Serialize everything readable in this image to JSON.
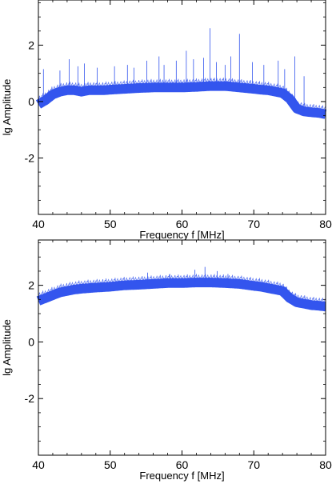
{
  "chart_data": [
    {
      "type": "line",
      "xlabel": "Frequency f [MHz]",
      "ylabel": "lg Amplitude",
      "xlim": [
        40,
        80
      ],
      "ylim": [
        -4,
        3.6
      ],
      "xticks": [
        40,
        50,
        60,
        70,
        80
      ],
      "yticks": [
        -2,
        0,
        2
      ],
      "color": "#3355ee",
      "grid": false,
      "series": [
        {
          "x": [
            40,
            41,
            42,
            43,
            44,
            45,
            46,
            47,
            48,
            49,
            50,
            52,
            54,
            56,
            58,
            60,
            62,
            64,
            66,
            68,
            70,
            71,
            72,
            73,
            74,
            75,
            76,
            77,
            78,
            79,
            80
          ],
          "values": [
            -0.1,
            0.05,
            0.25,
            0.35,
            0.4,
            0.4,
            0.35,
            0.4,
            0.4,
            0.4,
            0.42,
            0.45,
            0.48,
            0.5,
            0.5,
            0.5,
            0.52,
            0.55,
            0.55,
            0.5,
            0.45,
            0.42,
            0.4,
            0.35,
            0.3,
            0.1,
            -0.25,
            -0.35,
            -0.38,
            -0.4,
            -0.45
          ]
        }
      ],
      "spikes": [
        {
          "x": 40.7,
          "y": 1.15
        },
        {
          "x": 43.0,
          "y": 1.1
        },
        {
          "x": 44.3,
          "y": 1.5
        },
        {
          "x": 45.5,
          "y": 1.25
        },
        {
          "x": 46.4,
          "y": 1.35
        },
        {
          "x": 48.2,
          "y": 1.2
        },
        {
          "x": 50.6,
          "y": 1.25
        },
        {
          "x": 52.4,
          "y": 1.3
        },
        {
          "x": 53.3,
          "y": 1.2
        },
        {
          "x": 55.1,
          "y": 1.45
        },
        {
          "x": 56.8,
          "y": 1.6
        },
        {
          "x": 57.5,
          "y": 1.3
        },
        {
          "x": 59.2,
          "y": 1.45
        },
        {
          "x": 60.6,
          "y": 1.8
        },
        {
          "x": 61.6,
          "y": 1.5
        },
        {
          "x": 63.0,
          "y": 1.55
        },
        {
          "x": 63.9,
          "y": 2.6
        },
        {
          "x": 64.8,
          "y": 1.4
        },
        {
          "x": 66.0,
          "y": 1.3
        },
        {
          "x": 66.8,
          "y": 1.6
        },
        {
          "x": 68.0,
          "y": 2.4
        },
        {
          "x": 69.8,
          "y": 1.4
        },
        {
          "x": 71.4,
          "y": 1.3
        },
        {
          "x": 73.4,
          "y": 1.45
        },
        {
          "x": 74.3,
          "y": 1.15
        },
        {
          "x": 75.7,
          "y": 1.6
        },
        {
          "x": 77.0,
          "y": 0.9
        }
      ]
    },
    {
      "type": "line",
      "xlabel": "Frequency f [MHz]",
      "ylabel": "lg Amplitude",
      "xlim": [
        40,
        80
      ],
      "ylim": [
        -4,
        3.6
      ],
      "xticks": [
        40,
        50,
        60,
        70,
        80
      ],
      "yticks": [
        -2,
        0,
        2
      ],
      "color": "#3355ee",
      "grid": false,
      "series": [
        {
          "x": [
            40,
            41,
            42,
            43,
            44,
            45,
            46,
            48,
            50,
            52,
            54,
            56,
            58,
            60,
            62,
            64,
            66,
            68,
            70,
            71,
            72,
            73,
            74,
            75,
            76,
            77,
            78,
            79,
            80
          ],
          "values": [
            1.45,
            1.55,
            1.65,
            1.75,
            1.8,
            1.85,
            1.88,
            1.92,
            1.95,
            2.0,
            2.02,
            2.05,
            2.08,
            2.08,
            2.1,
            2.1,
            2.08,
            2.05,
            1.98,
            1.95,
            1.9,
            1.85,
            1.8,
            1.55,
            1.4,
            1.35,
            1.3,
            1.28,
            1.25
          ]
        }
      ],
      "spikes": [
        {
          "x": 55.2,
          "y": 2.45
        },
        {
          "x": 58.3,
          "y": 2.4
        },
        {
          "x": 61.8,
          "y": 2.55
        },
        {
          "x": 63.2,
          "y": 2.65
        },
        {
          "x": 64.9,
          "y": 2.5
        },
        {
          "x": 66.4,
          "y": 2.4
        }
      ]
    }
  ]
}
